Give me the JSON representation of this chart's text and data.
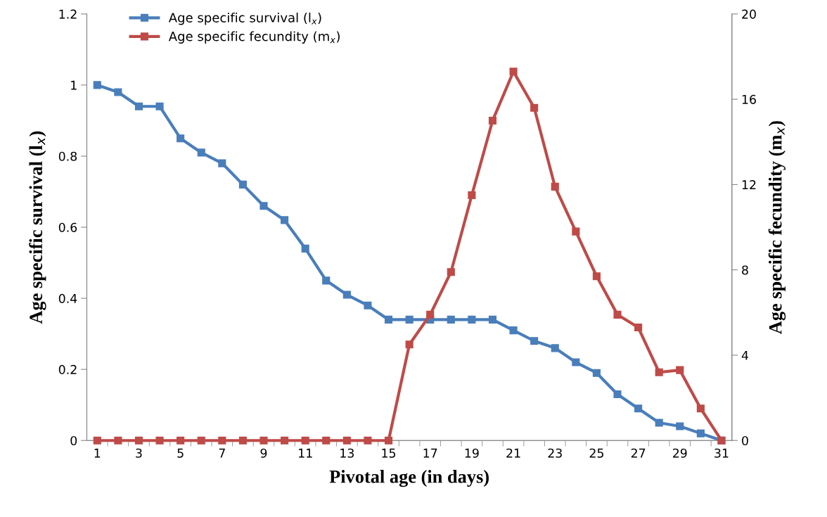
{
  "chart_data": {
    "type": "line",
    "xlabel": "Pivotal age (in days)",
    "ylabel": "Age specific survival (l$_{x}$)",
    "y2label": "Age specific fecundity (m$_{x}$)",
    "categories": [
      "1",
      null,
      "3",
      null,
      "5",
      null,
      "7",
      null,
      "9",
      null,
      "11",
      null,
      "13",
      null,
      "15",
      null,
      "17",
      null,
      "19",
      null,
      "21",
      null,
      "23",
      null,
      "25",
      null,
      "27",
      null,
      "29",
      null,
      "31"
    ],
    "series": [
      {
        "name": "Age specific survival (l$_{x}$)",
        "color": "#4a7ebb",
        "values": [
          1.0,
          0.98,
          0.94,
          0.94,
          0.85,
          0.81,
          0.78,
          0.72,
          0.66,
          0.62,
          0.54,
          0.45,
          0.41,
          0.38,
          0.34,
          0.34,
          0.34,
          0.34,
          0.34,
          0.34,
          0.31,
          0.28,
          0.26,
          0.22,
          0.19,
          0.13,
          0.09,
          0.05,
          0.04,
          0.02,
          0.0
        ]
      },
      {
        "name": "Age specific fecundity (m$_{x}$)",
        "color": "#be4b48",
        "axis": "y2",
        "values": [
          0,
          0,
          0,
          0,
          0,
          0,
          0,
          0,
          0,
          0,
          0,
          0,
          0,
          0,
          0,
          4.5,
          5.9,
          7.9,
          11.5,
          15.0,
          17.3,
          15.6,
          11.9,
          9.8,
          7.7,
          5.9,
          5.3,
          3.2,
          3.3,
          1.5,
          0
        ]
      }
    ],
    "ylim": [
      0,
      1.2
    ],
    "yticks": [
      0,
      {
        "value": 0.2,
        "label": "0.2"
      },
      {
        "value": 0.4,
        "label": "0.4"
      },
      {
        "value": 0.6,
        "label": "0.6"
      },
      {
        "value": 0.8,
        "label": "0.8"
      },
      {
        "value": 1.0,
        "label": "1"
      },
      {
        "value": 1.2,
        "label": "1.2"
      }
    ],
    "y2lim": [
      0,
      20
    ],
    "y2ticks": [
      0,
      4,
      8,
      12,
      16,
      20
    ],
    "grid": false,
    "legend": "top left",
    "marker": "square",
    "line_style": "solid"
  }
}
